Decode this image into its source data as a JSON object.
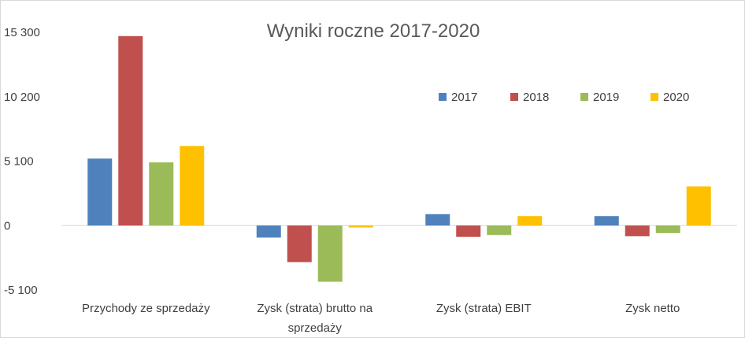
{
  "chart_data": {
    "type": "bar",
    "title": "Wyniki roczne 2017-2020",
    "xlabel": "",
    "ylabel": "",
    "ylim": [
      -5100,
      15300
    ],
    "yticks": [
      15300,
      10200,
      5100,
      0,
      -5100
    ],
    "ytick_labels": [
      "15 300",
      "10 200",
      "5 100",
      "0",
      "-5 100"
    ],
    "grid": false,
    "legend_position": "top-right",
    "categories": [
      [
        "Przychody ze sprzedaży"
      ],
      [
        "Zysk (strata) brutto na",
        "sprzedaży"
      ],
      [
        "Zysk (strata) EBIT"
      ],
      [
        "Zysk netto"
      ]
    ],
    "series": [
      {
        "name": "2017",
        "color": "#4f81bd",
        "values": [
          5300,
          -950,
          900,
          750
        ]
      },
      {
        "name": "2018",
        "color": "#c0504d",
        "values": [
          15000,
          -2900,
          -900,
          -850
        ]
      },
      {
        "name": "2019",
        "color": "#9bbb59",
        "values": [
          5000,
          -4450,
          -750,
          -600
        ]
      },
      {
        "name": "2020",
        "color": "#ffc000",
        "values": [
          6300,
          -150,
          750,
          3100
        ]
      }
    ]
  }
}
